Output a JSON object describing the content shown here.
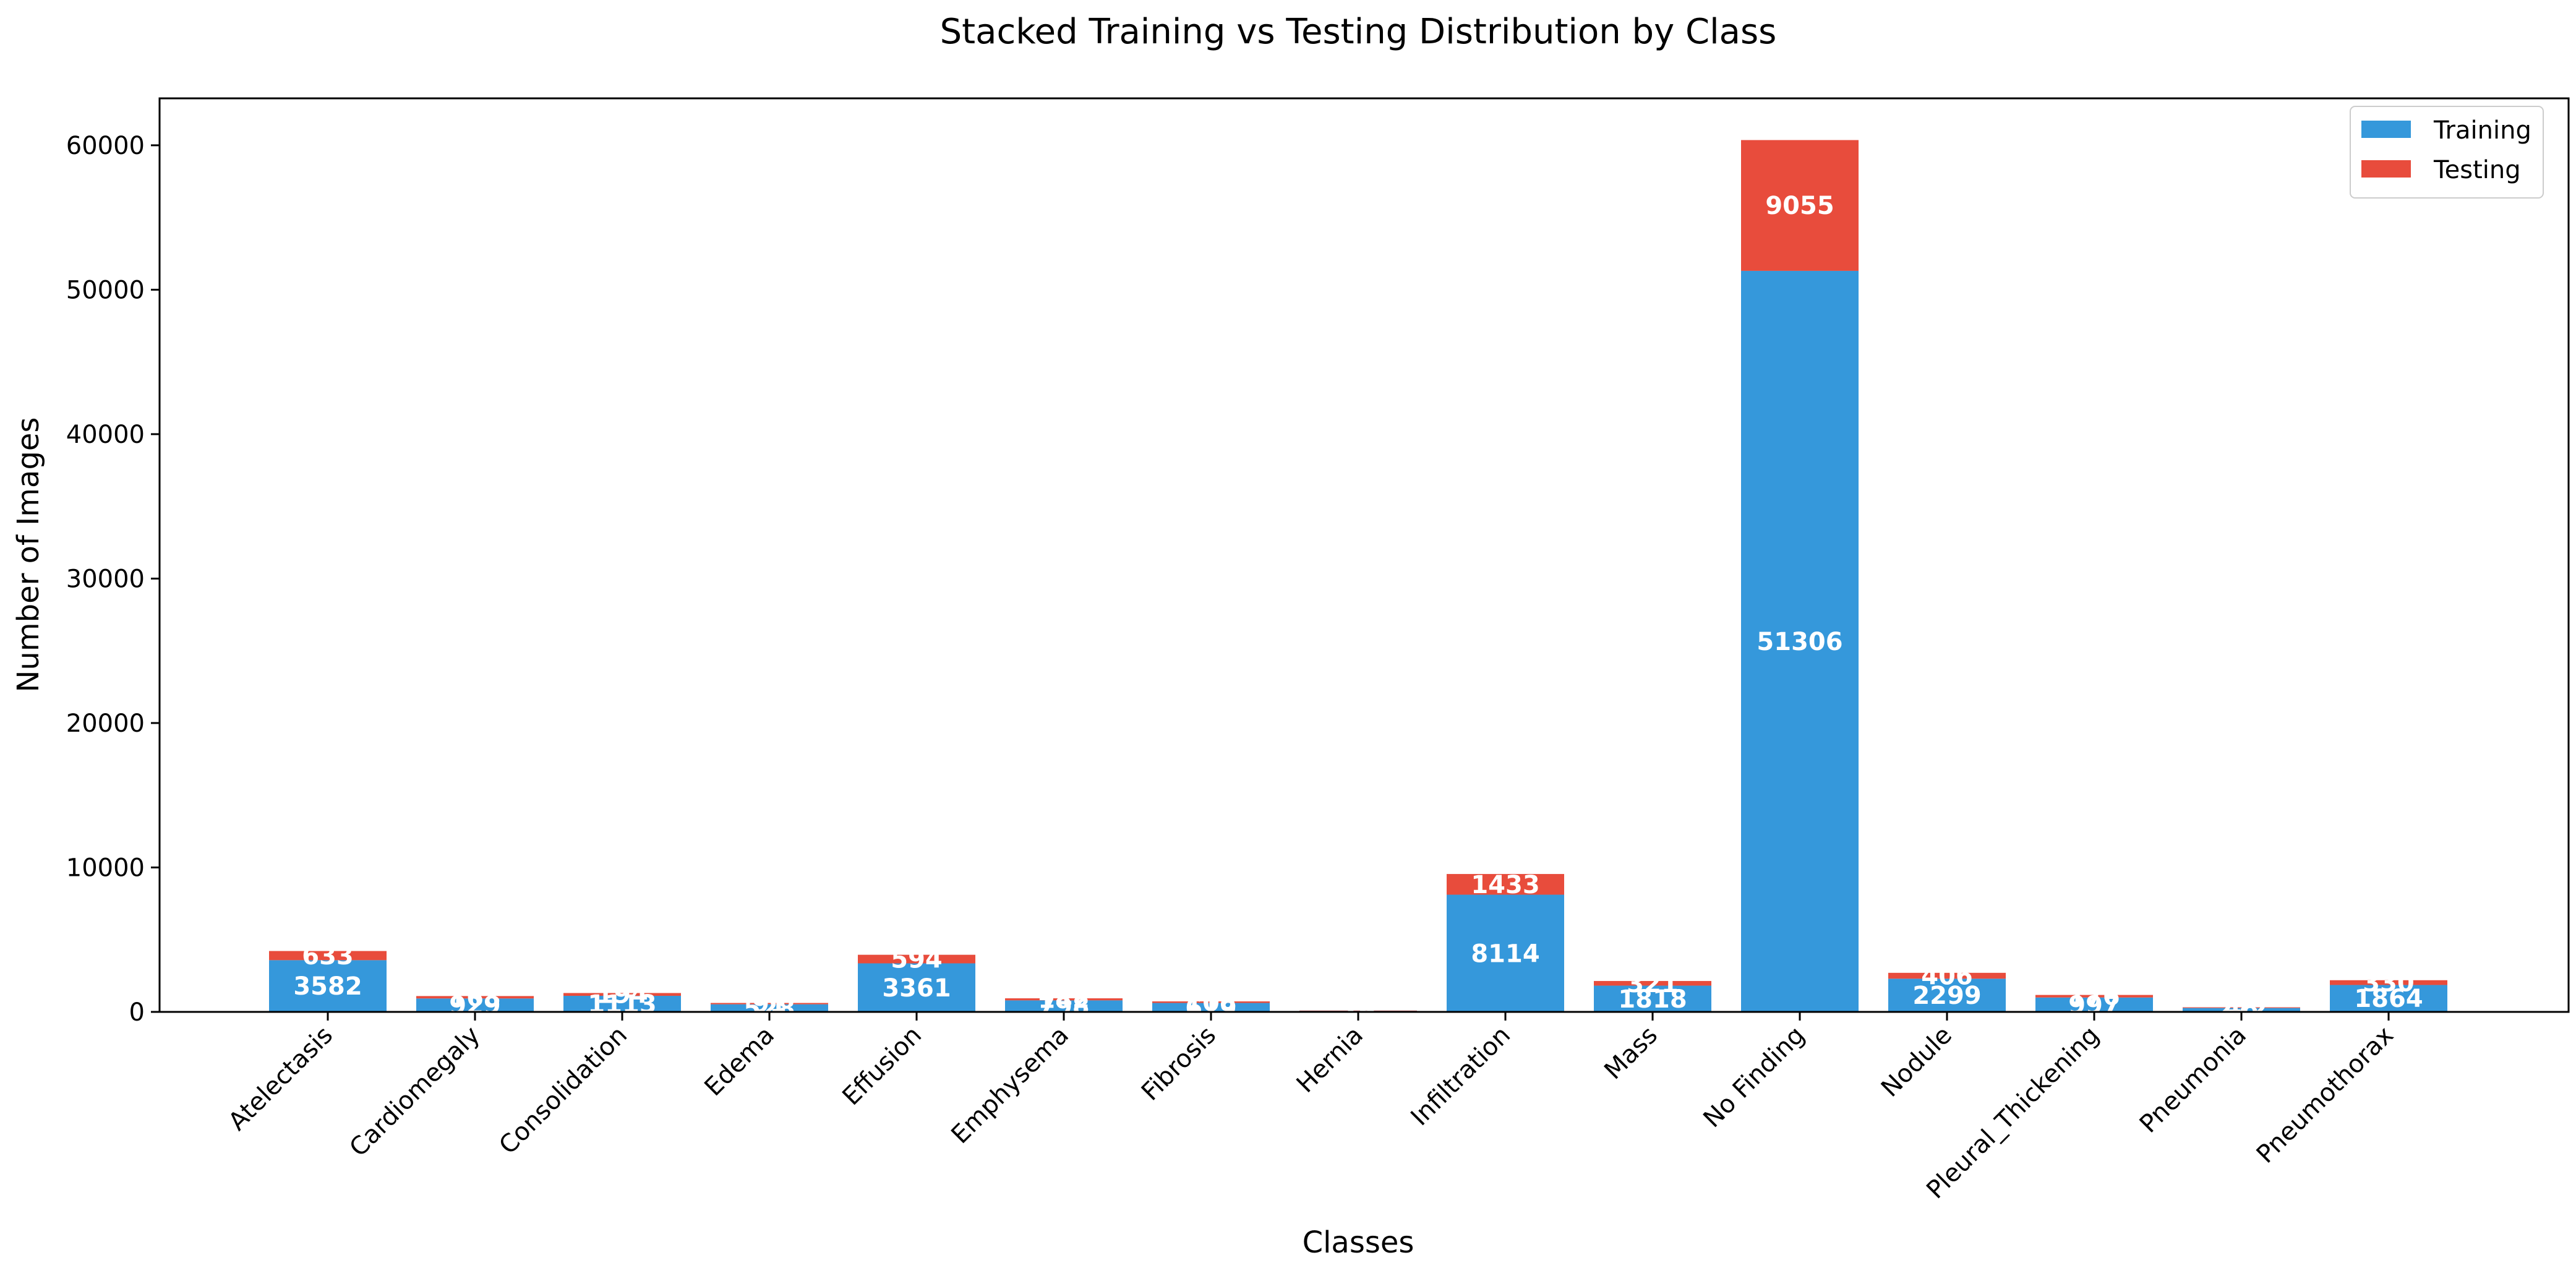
{
  "chart_data": {
    "type": "bar",
    "stacked": true,
    "title": "Stacked Training vs Testing Distribution by Class",
    "xlabel": "Classes",
    "ylabel": "Number of Images",
    "ylim": [
      0,
      63250
    ],
    "yticks": [
      0,
      10000,
      20000,
      30000,
      40000,
      50000,
      60000
    ],
    "grid": false,
    "legend_position": "top-right",
    "categories": [
      "Atelectasis",
      "Cardiomegaly",
      "Consolidation",
      "Edema",
      "Effusion",
      "Emphysema",
      "Fibrosis",
      "Hernia",
      "Infiltration",
      "Mass",
      "No Finding",
      "Nodule",
      "Pleural_Thickening",
      "Pneumonia",
      "Pneumothorax"
    ],
    "series": [
      {
        "name": "Training",
        "color": "#3598db",
        "values": [
          3582,
          929,
          1113,
          528,
          3361,
          798,
          619,
          79,
          8114,
          1818,
          51306,
          2299,
          997,
          272,
          1864
        ],
        "labels": [
          "3582",
          "929",
          "1113",
          "528",
          "3361",
          "798",
          "619",
          "79",
          "8114",
          "1818",
          "51306",
          "2299",
          "997",
          "272",
          "1864"
        ]
      },
      {
        "name": "Testing",
        "color": "#e84c3c",
        "values": [
          633,
          168,
          194,
          91,
          594,
          142,
          108,
          14,
          1433,
          321,
          9055,
          406,
          176,
          48,
          330
        ],
        "labels": [
          "633",
          "168",
          "194",
          "91",
          "594",
          "142",
          "108",
          "14",
          "1433",
          "321",
          "9055",
          "406",
          "176",
          "48",
          "330"
        ]
      }
    ]
  }
}
